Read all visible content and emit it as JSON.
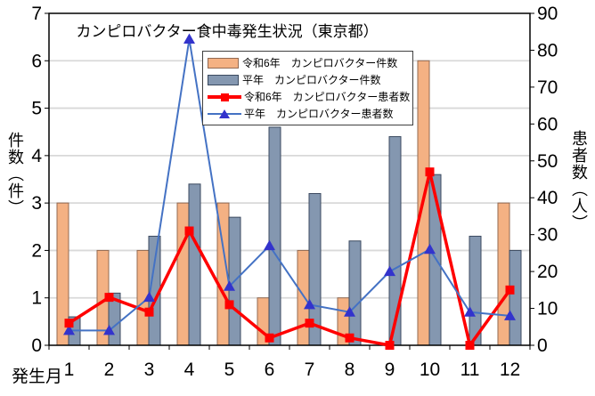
{
  "title": "カンピロバクター食中毒発生状況（東京都）",
  "left_axis": {
    "label": "件数（件）",
    "ticks": [
      0,
      1,
      2,
      3,
      4,
      5,
      6,
      7
    ],
    "min": 0,
    "max": 7
  },
  "right_axis": {
    "label": "患者数（人）",
    "ticks": [
      0,
      10,
      20,
      30,
      40,
      50,
      60,
      70,
      80,
      90
    ],
    "min": 0,
    "max": 90
  },
  "x_axis": {
    "label": "発生月"
  },
  "colors": {
    "gridline": "#D9D9D9",
    "axis": "#000000",
    "background": "#FFFFFF",
    "bar_reiwa6": "#F4B183",
    "bar_heinen": "#8497B0",
    "line_reiwa6": "#FF0000",
    "line_heinen": "#4472C4",
    "marker_heinen": "#3333CC"
  },
  "chart_data": {
    "type": "combo",
    "categories": [
      "1",
      "2",
      "3",
      "4",
      "5",
      "6",
      "7",
      "8",
      "9",
      "10",
      "11",
      "12"
    ],
    "series": [
      {
        "key": "reiwa6-kensu",
        "name": "令和6年　カンピロバクター件数",
        "type": "bar",
        "axis": "left",
        "fill": "#F4B183",
        "border": "#936A52",
        "values": [
          3,
          2,
          2,
          3,
          3,
          1,
          2,
          1,
          0,
          6,
          0,
          3
        ]
      },
      {
        "key": "heinen-kensu",
        "name": "平年　カンピロバクター件数",
        "type": "bar",
        "axis": "left",
        "fill": "#8497B0",
        "border": "#3B4A5F",
        "values": [
          0.6,
          1.1,
          2.3,
          3.4,
          2.7,
          4.6,
          3.2,
          2.2,
          4.4,
          3.6,
          2.3,
          2.0
        ]
      },
      {
        "key": "reiwa6-kanja",
        "name": "令和6年　カンピロバクター患者数",
        "type": "line",
        "axis": "right",
        "color": "#FF0000",
        "marker": "square",
        "marker_color": "#FF0000",
        "values": [
          6,
          13,
          9,
          31,
          11,
          2,
          6,
          2,
          0,
          47,
          0,
          15
        ]
      },
      {
        "key": "heinen-kanja",
        "name": "平年　カンピロバクター患者数",
        "type": "line",
        "axis": "right",
        "color": "#4472C4",
        "marker": "triangle",
        "marker_color": "#3333CC",
        "values": [
          4,
          4,
          13,
          83,
          16,
          27,
          11,
          9,
          20,
          26,
          9,
          8
        ]
      }
    ],
    "left_ylim": [
      0,
      7
    ],
    "right_ylim": [
      0,
      90
    ],
    "grid": "horizontal",
    "legend_position": "upper-middle"
  }
}
